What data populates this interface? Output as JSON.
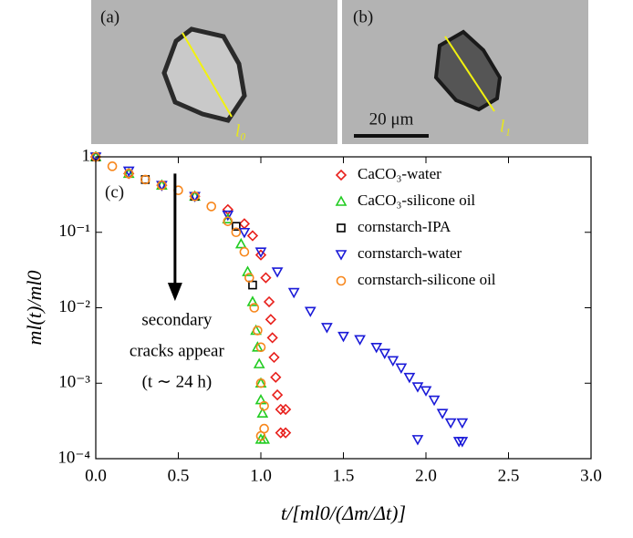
{
  "panels": [
    {
      "label": "(a)",
      "length_label": "l₀"
    },
    {
      "label": "(b)",
      "length_label": "l₁",
      "scale_label": "20 μm"
    }
  ],
  "chart_data": {
    "type": "scatter",
    "panel_label": "(c)",
    "x_label": "t/[ml0/(Δm/Δt)]",
    "y_label": "ml(t)/ml0",
    "log_y": true,
    "legend": "upper right",
    "xlim": [
      0,
      3
    ],
    "ylim": [
      0.0001,
      1
    ],
    "xticks": [
      {
        "value": 0,
        "label": "0.0"
      },
      0.5,
      {
        "value": 1,
        "label": "1.0"
      },
      1.5,
      {
        "value": 2,
        "label": "2.0"
      },
      2.5,
      {
        "value": 3,
        "label": "3.0"
      }
    ],
    "yticks": [
      {
        "value": 0.0001,
        "label": "10⁻⁴"
      },
      {
        "value": 0.001,
        "label": "10⁻³"
      },
      {
        "value": 0.01,
        "label": "10⁻²"
      },
      {
        "value": 0.1,
        "label": "10⁻¹"
      },
      1
    ],
    "annotation": {
      "lines": [
        "secondary",
        "cracks appear",
        "(t ∼ 24 h)"
      ],
      "x": 0.48,
      "y_from": 0.6,
      "y_to": 0.013
    },
    "series": [
      {
        "name": "CaCO₃-water",
        "color": "#e8201c",
        "marker": "diamond",
        "x": [
          0.0,
          0.2,
          0.4,
          0.6,
          0.8,
          0.9,
          0.95,
          1.0,
          1.03,
          1.05,
          1.06,
          1.07,
          1.08,
          1.09,
          1.1,
          1.12,
          1.15,
          1.12,
          1.15
        ],
        "y": [
          1,
          0.6,
          0.42,
          0.3,
          0.2,
          0.13,
          0.09,
          0.05,
          0.025,
          0.012,
          0.007,
          0.004,
          0.0022,
          0.0012,
          0.0007,
          0.00045,
          0.00045,
          0.00022,
          0.00022
        ]
      },
      {
        "name": "CaCO₃-silicone oil",
        "color": "#22cc22",
        "marker": "triangle-up",
        "x": [
          0.0,
          0.2,
          0.4,
          0.6,
          0.8,
          0.88,
          0.92,
          0.95,
          0.97,
          0.98,
          0.99,
          1.0,
          1.0,
          1.01,
          1.0,
          1.02
        ],
        "y": [
          1,
          0.6,
          0.42,
          0.3,
          0.15,
          0.07,
          0.03,
          0.012,
          0.005,
          0.003,
          0.0018,
          0.001,
          0.0006,
          0.0004,
          0.00018,
          0.00018
        ]
      },
      {
        "name": "cornstarch-IPA",
        "color": "#000000",
        "marker": "square",
        "x": [
          0.0,
          0.3,
          0.6,
          0.85,
          0.95
        ],
        "y": [
          1,
          0.5,
          0.3,
          0.12,
          0.02
        ]
      },
      {
        "name": "cornstarch-water",
        "color": "#1a1ad8",
        "marker": "triangle-down",
        "x": [
          0.0,
          0.2,
          0.4,
          0.6,
          0.8,
          0.9,
          1.0,
          1.1,
          1.2,
          1.3,
          1.4,
          1.5,
          1.6,
          1.7,
          1.75,
          1.8,
          1.85,
          1.9,
          1.95,
          2.0,
          2.05,
          2.1,
          2.15,
          2.2,
          2.22,
          1.95,
          2.22
        ],
        "y": [
          1,
          0.65,
          0.42,
          0.3,
          0.17,
          0.1,
          0.055,
          0.03,
          0.016,
          0.009,
          0.0055,
          0.0042,
          0.0038,
          0.003,
          0.0025,
          0.002,
          0.0016,
          0.0012,
          0.0009,
          0.0008,
          0.0006,
          0.0004,
          0.0003,
          0.00017,
          0.00017,
          0.00018,
          0.0003
        ]
      },
      {
        "name": "cornstarch-silicone oil",
        "color": "#f7861b",
        "marker": "circle",
        "x": [
          0.0,
          0.1,
          0.2,
          0.3,
          0.4,
          0.5,
          0.6,
          0.7,
          0.8,
          0.85,
          0.9,
          0.93,
          0.96,
          0.98,
          1.0,
          1.0,
          1.02,
          1.02,
          1.0
        ],
        "y": [
          1,
          0.75,
          0.6,
          0.5,
          0.42,
          0.36,
          0.3,
          0.22,
          0.14,
          0.1,
          0.055,
          0.025,
          0.01,
          0.005,
          0.003,
          0.001,
          0.0005,
          0.00025,
          0.0002
        ]
      }
    ]
  }
}
